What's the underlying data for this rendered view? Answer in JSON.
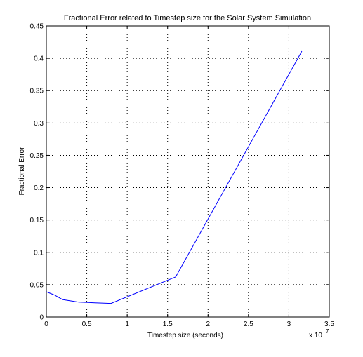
{
  "chart_data": {
    "type": "line",
    "title": "Fractional Error related to Timestep size for the Solar System Simulation",
    "xlabel": "Timestep size (seconds)",
    "ylabel": "Fractional Error",
    "x_multiplier_label": "x 10",
    "x_multiplier_exponent": "7",
    "xlim": [
      0,
      3.5
    ],
    "ylim": [
      0,
      0.45
    ],
    "x_ticks": [
      0,
      0.5,
      1,
      1.5,
      2,
      2.5,
      3,
      3.5
    ],
    "x_tick_labels": [
      "0",
      "0.5",
      "1",
      "1.5",
      "2",
      "2.5",
      "3",
      "3.5"
    ],
    "y_ticks": [
      0,
      0.05,
      0.1,
      0.15,
      0.2,
      0.25,
      0.3,
      0.35,
      0.4,
      0.45
    ],
    "y_tick_labels": [
      "0",
      "0.05",
      "0.1",
      "0.15",
      "0.2",
      "0.25",
      "0.3",
      "0.35",
      "0.4",
      "0.45"
    ],
    "grid": true,
    "series": [
      {
        "color": "#0000ff",
        "x": [
          0,
          0.1,
          0.2,
          0.4,
          0.6,
          0.8,
          1.6,
          3.16
        ],
        "y": [
          0.039,
          0.034,
          0.027,
          0.023,
          0.022,
          0.021,
          0.062,
          0.411
        ]
      }
    ]
  }
}
